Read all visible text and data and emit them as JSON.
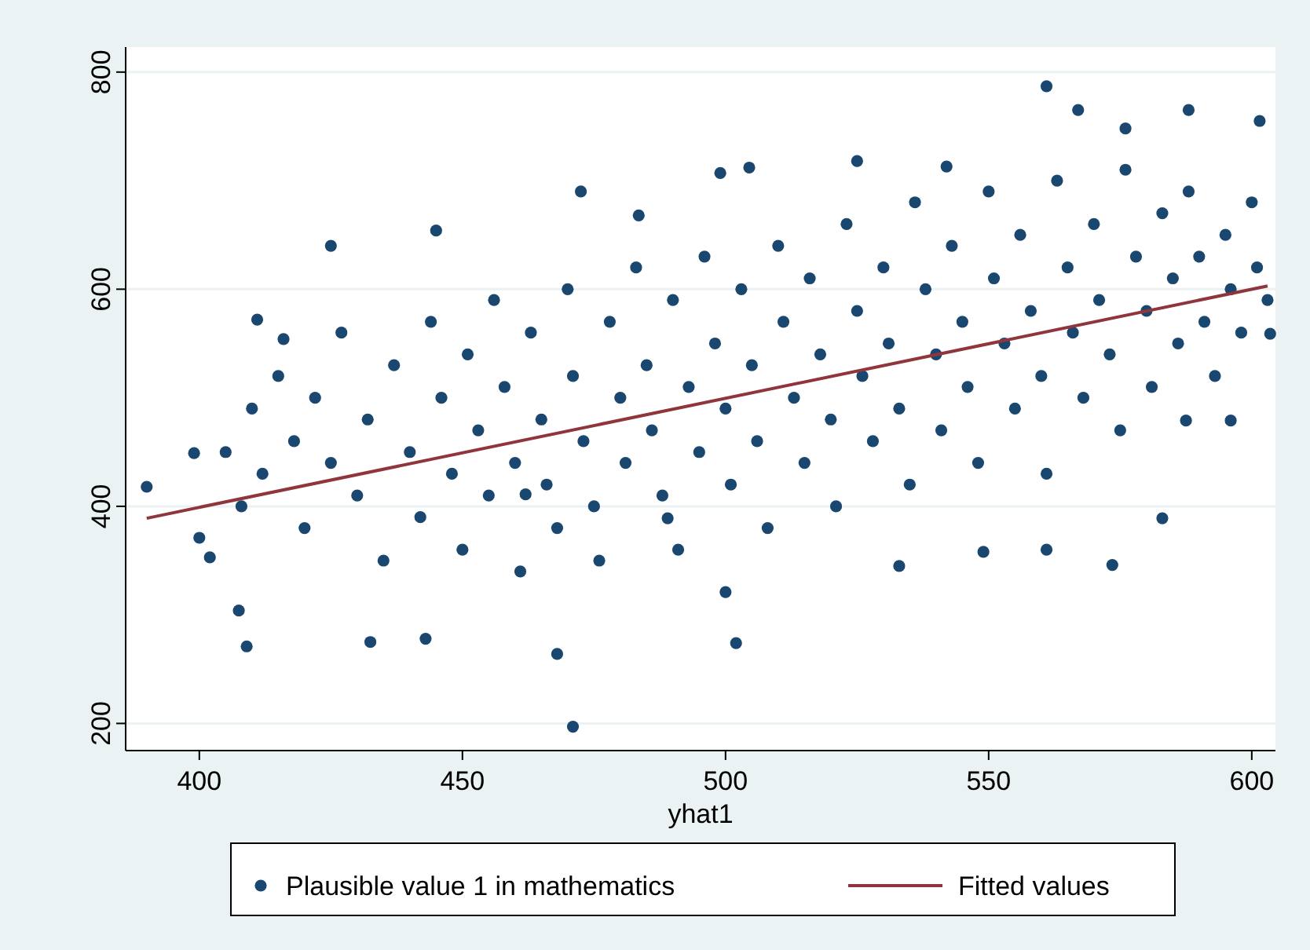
{
  "chart_data": {
    "type": "scatter",
    "xlabel": "yhat1",
    "xlim": [
      386,
      604.5
    ],
    "ylim": [
      175,
      823
    ],
    "xticks": [
      400,
      450,
      500,
      550,
      600
    ],
    "yticks": [
      200,
      400,
      600,
      800
    ],
    "grid": "y",
    "legend": "bottom",
    "series": [
      {
        "name": "Plausible value 1 in mathematics",
        "marker": "circle",
        "color": "#1a476f",
        "x": [
          390,
          399,
          400,
          402,
          407.5,
          409,
          411,
          416,
          425,
          432.5,
          445,
          443,
          468,
          471,
          472.5,
          483.5,
          499,
          504.5,
          502,
          500,
          525,
          542,
          561,
          567,
          576,
          588,
          601.5,
          583,
          573.5,
          561,
          549,
          533,
          587.5,
          596,
          603.5,
          489,
          462,
          405,
          408,
          410,
          412,
          415,
          418,
          420,
          422,
          425,
          427,
          430,
          432,
          435,
          437,
          440,
          442,
          444,
          446,
          448,
          450,
          451,
          453,
          455,
          456,
          458,
          460,
          461,
          463,
          465,
          466,
          468,
          470,
          471,
          473,
          475,
          476,
          478,
          480,
          481,
          483,
          485,
          486,
          488,
          490,
          491,
          493,
          495,
          496,
          498,
          500,
          501,
          503,
          505,
          506,
          508,
          510,
          511,
          513,
          515,
          516,
          518,
          520,
          521,
          523,
          525,
          526,
          528,
          530,
          531,
          533,
          535,
          536,
          538,
          540,
          541,
          543,
          545,
          546,
          548,
          550,
          551,
          553,
          555,
          556,
          558,
          560,
          561,
          563,
          565,
          566,
          568,
          570,
          571,
          573,
          575,
          576,
          578,
          580,
          581,
          583,
          585,
          586,
          588,
          590,
          591,
          593,
          595,
          596,
          598,
          600,
          601,
          603
        ],
        "values": [
          418,
          449,
          371,
          353,
          304,
          271,
          572,
          554,
          640,
          275,
          654,
          278,
          264,
          197,
          690,
          668,
          707,
          712,
          274,
          321,
          718,
          713,
          787,
          765,
          748,
          765,
          755,
          389,
          346,
          360,
          358,
          345,
          479,
          479,
          559,
          389,
          411,
          450,
          400,
          490,
          430,
          520,
          460,
          380,
          500,
          440,
          560,
          410,
          480,
          350,
          530,
          450,
          390,
          570,
          500,
          430,
          360,
          540,
          470,
          410,
          590,
          510,
          440,
          340,
          560,
          480,
          420,
          380,
          600,
          520,
          460,
          400,
          350,
          570,
          500,
          440,
          620,
          530,
          470,
          410,
          590,
          360,
          510,
          450,
          630,
          550,
          490,
          420,
          600,
          530,
          460,
          380,
          640,
          570,
          500,
          440,
          610,
          540,
          480,
          400,
          660,
          580,
          520,
          460,
          620,
          550,
          490,
          420,
          680,
          600,
          540,
          470,
          640,
          570,
          510,
          440,
          690,
          610,
          550,
          490,
          650,
          580,
          520,
          430,
          700,
          620,
          560,
          500,
          660,
          590,
          540,
          470,
          710,
          630,
          580,
          510,
          670,
          610,
          550,
          690,
          630,
          570,
          520,
          650,
          600,
          560,
          680,
          620,
          590
        ]
      },
      {
        "name": "Fitted values",
        "type": "line",
        "marker": "none",
        "color": "#90353b",
        "x": [
          390,
          603
        ],
        "values": [
          389,
          603
        ]
      }
    ]
  }
}
